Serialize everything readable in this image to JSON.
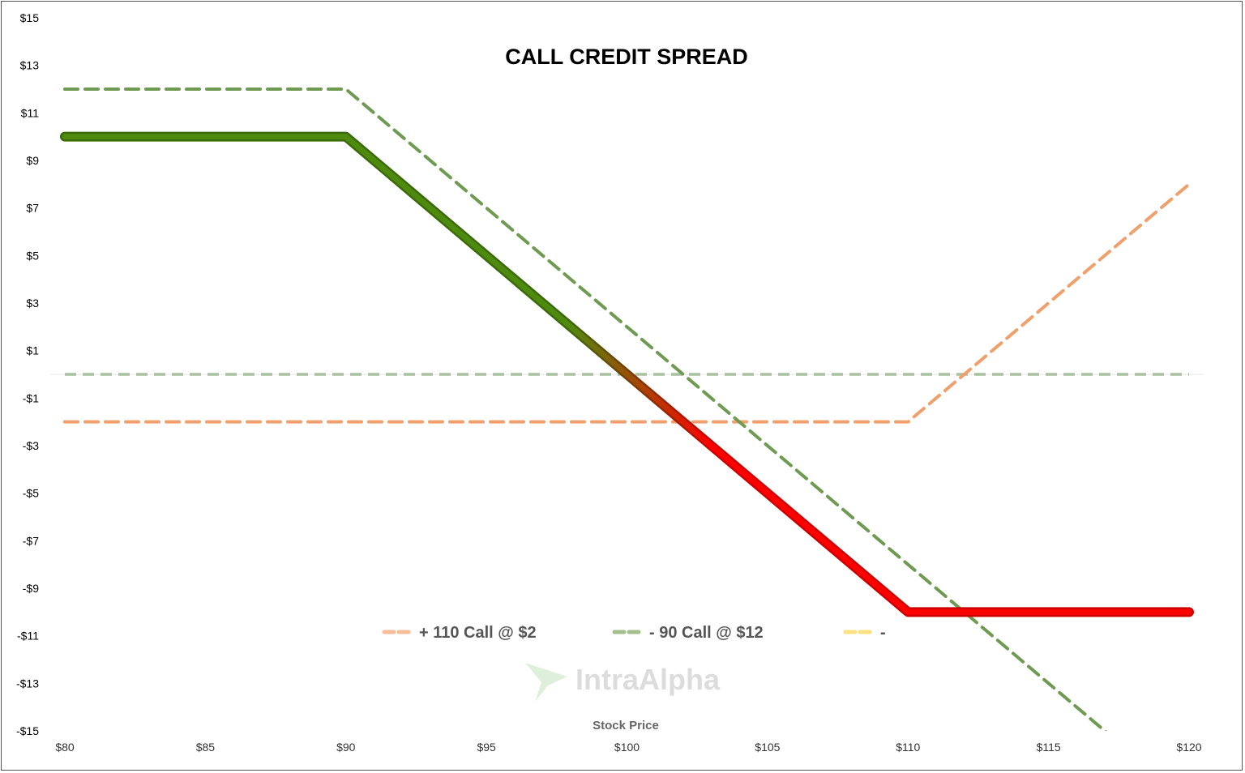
{
  "chart_data": {
    "type": "line",
    "title": "CALL CREDIT SPREAD",
    "xlabel": "Stock Price",
    "ylabel": "",
    "xlim": [
      80,
      120
    ],
    "ylim": [
      -15,
      15
    ],
    "x_ticks": [
      80,
      85,
      90,
      95,
      100,
      105,
      110,
      115,
      120
    ],
    "x_tick_labels": [
      "$80",
      "$85",
      "$90",
      "$95",
      "$100",
      "$105",
      "$110",
      "$115",
      "$120"
    ],
    "y_ticks": [
      15,
      13,
      11,
      9,
      7,
      5,
      3,
      1,
      -1,
      -3,
      -5,
      -7,
      -9,
      -11,
      -13,
      -15
    ],
    "y_tick_labels": [
      "$15",
      "$13",
      "$11",
      "$9",
      "$7",
      "$5",
      "$3",
      "$1",
      "-$1",
      "-$3",
      "-$5",
      "-$7",
      "-$9",
      "-$11",
      "-$13",
      "-$15"
    ],
    "grid": false,
    "legend_placement": "bottom-center",
    "series": [
      {
        "name": "+ 110 Call @ $2",
        "style": "dashed",
        "color": "#f0a06c",
        "legend_color": "#f5bd98",
        "x": [
          80,
          110,
          120
        ],
        "y": [
          -2,
          -2,
          8
        ]
      },
      {
        "name": "- 90 Call @ $12",
        "style": "dashed",
        "color": "#6e9a52",
        "legend_color": "#a4c08e",
        "x": [
          80,
          90,
          117,
          120
        ],
        "y": [
          12,
          12,
          -15,
          -18
        ]
      },
      {
        "name": "-",
        "style": "dashed",
        "color": "#ffd966",
        "legend_color": "#ffe080",
        "x": [],
        "y": []
      }
    ],
    "zero_line": {
      "style": "dashed",
      "color": "#a9c1a0",
      "y": 0
    },
    "net_payoff": {
      "style": "solid",
      "profit_color": "#4e8a0e",
      "loss_color": "#ff0000",
      "x": [
        80,
        90,
        110,
        120
      ],
      "y": [
        10,
        10,
        -10,
        -10
      ]
    },
    "watermark": "IntraAlpha"
  }
}
